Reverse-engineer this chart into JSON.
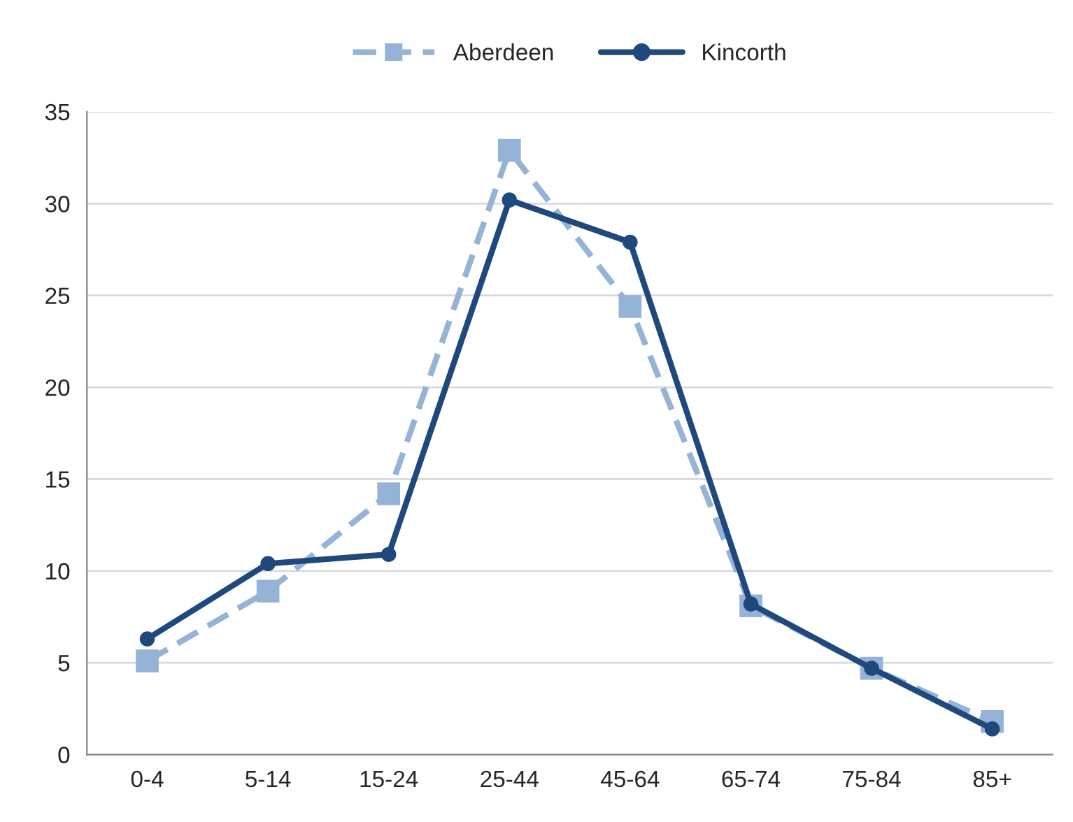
{
  "chart_data": {
    "type": "line",
    "categories": [
      "0-4",
      "5-14",
      "15-24",
      "25-44",
      "45-64",
      "65-74",
      "75-84",
      "85+"
    ],
    "series": [
      {
        "name": "Aberdeen",
        "color": "#95b3d7",
        "marker": "square",
        "line_style": "dashed",
        "values": [
          5.1,
          8.9,
          14.2,
          32.9,
          24.4,
          8.1,
          4.7,
          1.8
        ]
      },
      {
        "name": "Kincorth",
        "color": "#1f497d",
        "marker": "circle",
        "line_style": "solid",
        "values": [
          6.3,
          10.4,
          10.9,
          30.2,
          27.9,
          8.2,
          4.7,
          1.4
        ]
      }
    ],
    "ylim": [
      0,
      35
    ],
    "yticks": [
      0,
      5,
      10,
      15,
      20,
      25,
      30,
      35
    ],
    "grid": "y",
    "legend": "top"
  }
}
